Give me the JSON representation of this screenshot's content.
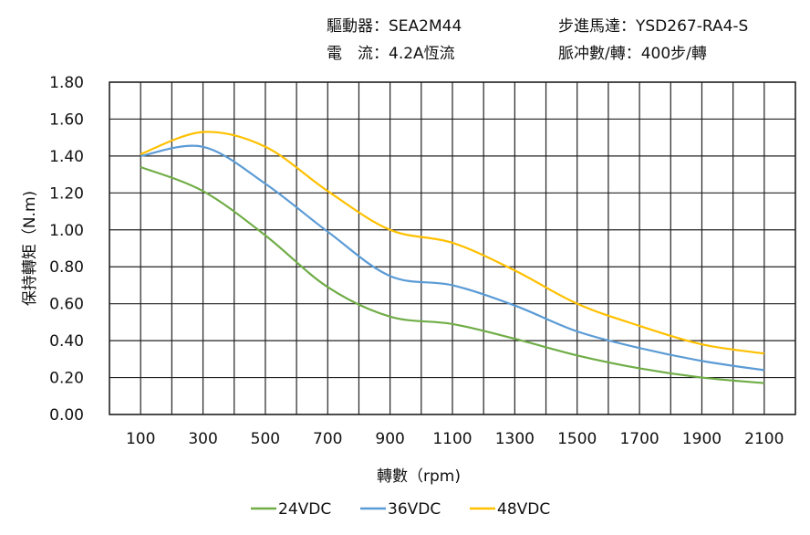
{
  "header": {
    "driver": "驅動器：SEA2M44",
    "motor": "步進馬達：YSD267-RA4-S",
    "current": "電　流：4.2A恆流",
    "pulses": "脈冲數/轉：400步/轉"
  },
  "chart_data": {
    "type": "line",
    "xlabel": "轉數（rpm)",
    "ylabel": "保持轉矩（N.m)",
    "x": [
      100,
      300,
      500,
      700,
      900,
      1100,
      1300,
      1500,
      1700,
      1900,
      2100
    ],
    "xlim": [
      0,
      2200
    ],
    "ylim": [
      0,
      1.8
    ],
    "x_ticks": [
      "100",
      "300",
      "500",
      "700",
      "900",
      "1100",
      "1300",
      "1500",
      "1700",
      "1900",
      "2100"
    ],
    "y_ticks": [
      "0.00",
      "0.20",
      "0.40",
      "0.60",
      "0.80",
      "1.00",
      "1.20",
      "1.40",
      "1.60",
      "1.80"
    ],
    "grid": true,
    "legend_position": "bottom",
    "series": [
      {
        "name": "24VDC",
        "color": "#70ad47",
        "values": [
          1.34,
          1.21,
          0.97,
          0.69,
          0.53,
          0.49,
          0.41,
          0.32,
          0.25,
          0.2,
          0.17
        ]
      },
      {
        "name": "36VDC",
        "color": "#5b9bd5",
        "values": [
          1.4,
          1.45,
          1.25,
          0.99,
          0.75,
          0.7,
          0.59,
          0.45,
          0.36,
          0.29,
          0.24
        ]
      },
      {
        "name": "48VDC",
        "color": "#ffc000",
        "values": [
          1.41,
          1.53,
          1.45,
          1.21,
          1.0,
          0.93,
          0.78,
          0.6,
          0.48,
          0.38,
          0.33
        ]
      }
    ]
  }
}
